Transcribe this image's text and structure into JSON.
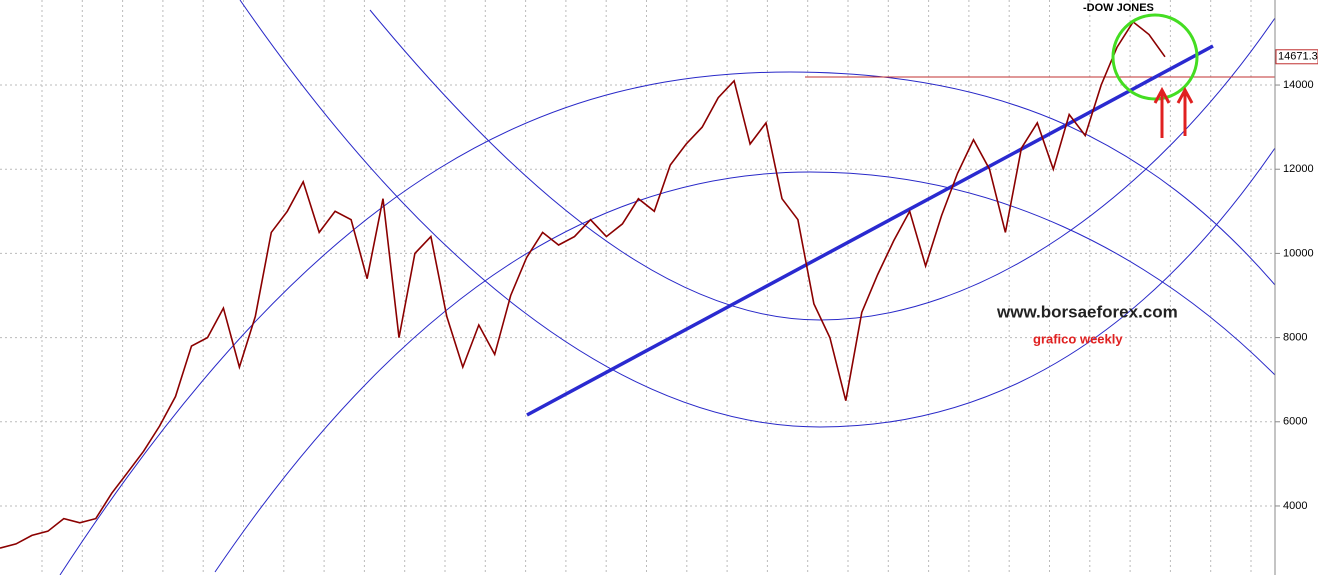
{
  "chart_data": {
    "type": "line",
    "title": "-DOW JONES",
    "annotations": [
      "www.borsaeforex.com",
      "grafico weekly"
    ],
    "series": [
      {
        "name": null,
        "color": "#8b0000",
        "values": [
          3000,
          3100,
          3300,
          3400,
          3700,
          3600,
          3700,
          4300,
          4800,
          5300,
          5900,
          6600,
          7800,
          8000,
          8700,
          7300,
          8500,
          10500,
          11000,
          11700,
          10500,
          11000,
          10800,
          9400,
          11300,
          8000,
          10000,
          10400,
          8500,
          7300,
          8300,
          7600,
          9000,
          9900,
          10500,
          10200,
          10400,
          10800,
          10400,
          10700,
          11300,
          11000,
          12100,
          12600,
          13000,
          13700,
          14100,
          12600,
          13100,
          11300,
          10800,
          8800,
          8000,
          6500,
          8600,
          9500,
          10300,
          11000,
          9700,
          10900,
          11900,
          12700,
          12000,
          10500,
          12500,
          13100,
          12000,
          13300,
          12800,
          14000,
          14900,
          15500,
          15200,
          14671.3
        ]
      }
    ],
    "last_price": 14671.3,
    "ylim": [
      2360,
      16020
    ],
    "yticks": [
      4000,
      6000,
      8000,
      10000,
      12000,
      14000
    ],
    "grid": true
  }
}
